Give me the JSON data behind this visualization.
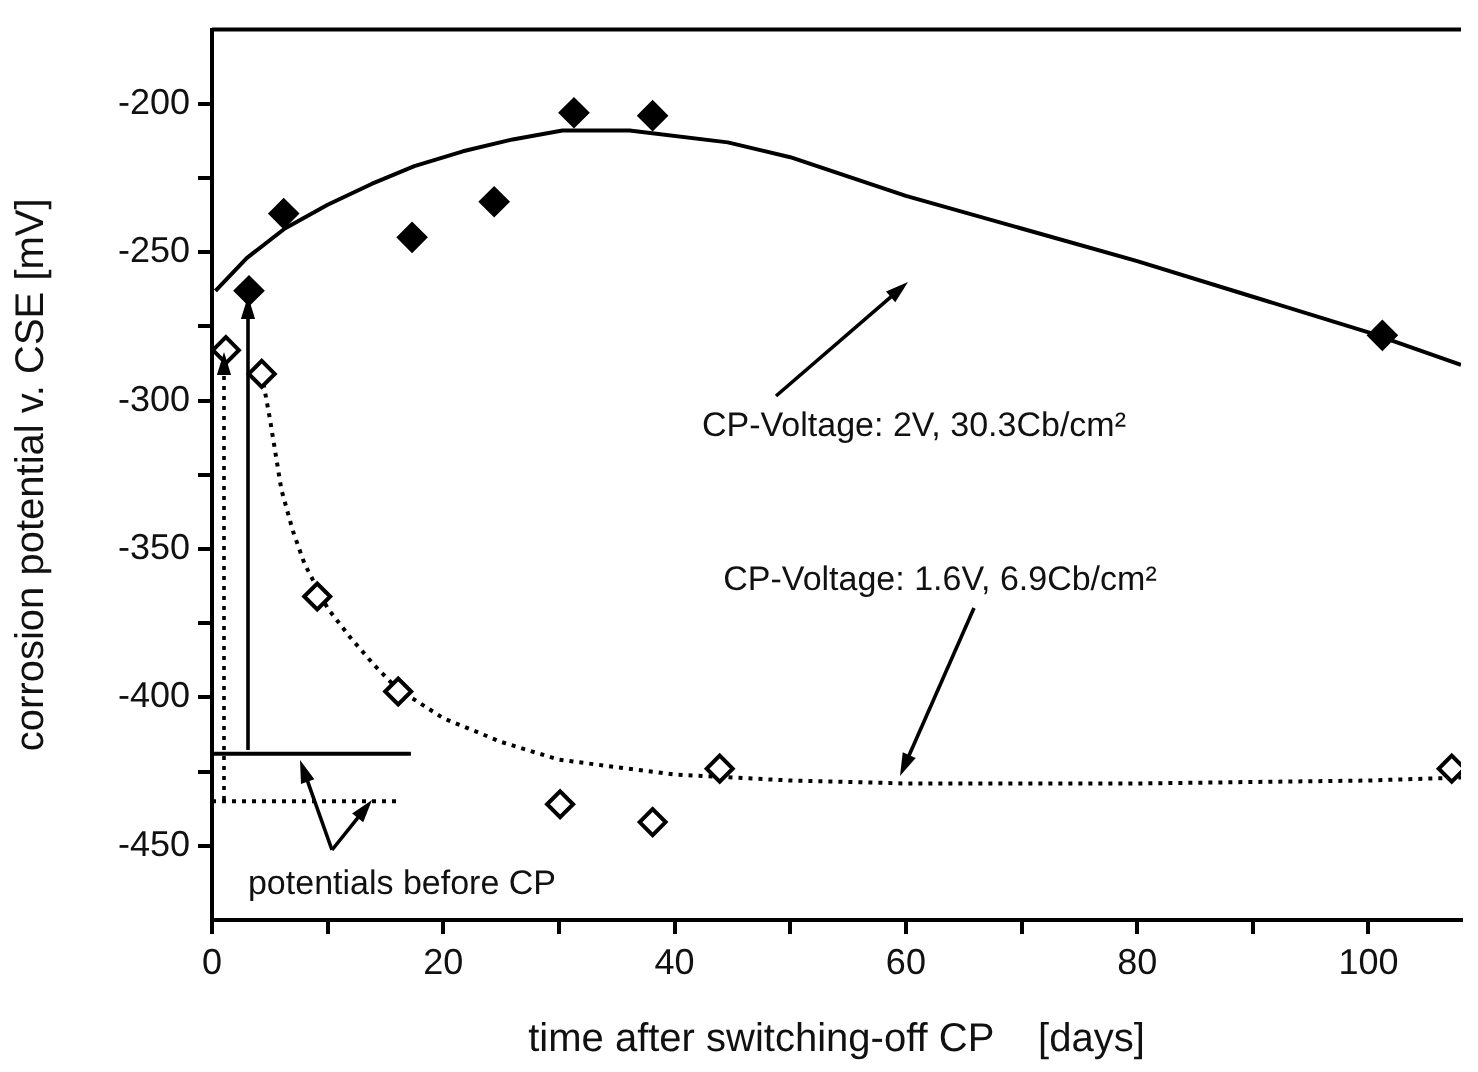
{
  "chart_data": {
    "type": "scatter",
    "xlabel": "time after switching-off CP    [days]",
    "ylabel": "corrosion potential v. CSE [mV]",
    "xlim": [
      0,
      108
    ],
    "ylim": [
      -475,
      -175
    ],
    "xticks": [
      0,
      {
        "value": 10,
        "label": null
      },
      20,
      {
        "value": 30,
        "label": null
      },
      40,
      {
        "value": 50,
        "label": null
      },
      60,
      {
        "value": 70,
        "label": null
      },
      80,
      {
        "value": 90,
        "label": null
      },
      100
    ],
    "yticks": [
      -450,
      {
        "value": -425,
        "label": null
      },
      -400,
      {
        "value": -375,
        "label": null
      },
      -350,
      {
        "value": -325,
        "label": null
      },
      -300,
      {
        "value": -275,
        "label": null
      },
      -250,
      {
        "value": -225,
        "label": null
      },
      -200
    ],
    "grid": false,
    "legend": false,
    "series": [
      {
        "marker": "diamond",
        "color": "#000000",
        "x": [
          3.2,
          6.2,
          17.3,
          24.4,
          31.3,
          38.1,
          101.2
        ],
        "values": [
          -263,
          -237,
          -245,
          -233,
          -203,
          -204,
          -278
        ]
      },
      {
        "marker": "diamond",
        "color": "#000000",
        "x": [
          1.2,
          4.3,
          9.1,
          16.1,
          30.1,
          38.1,
          43.9,
          107.2
        ],
        "values": [
          -283,
          -291,
          -366,
          -398,
          -436,
          -442,
          -424,
          -424
        ]
      },
      {
        "type": "line",
        "marker": "none",
        "line_style": "solid",
        "color": "#000000",
        "x": [
          0.3,
          3,
          6.3,
          10,
          13.8,
          17.5,
          21.7,
          26,
          30.3,
          36.1,
          44.6,
          50,
          60,
          70,
          80,
          90,
          100,
          108
        ],
        "values": [
          -263,
          -252,
          -242,
          -234,
          -227,
          -221,
          -216,
          -212,
          -209,
          -209,
          -213,
          -218,
          -231,
          -242,
          -253,
          -265,
          -277,
          -288
        ]
      },
      {
        "type": "line",
        "marker": "none",
        "line_style": "dotted",
        "color": "#000000",
        "x": [
          4.3,
          5,
          6,
          7,
          8,
          10,
          12,
          14,
          16,
          20,
          25,
          30,
          40,
          50,
          60,
          80,
          100,
          108
        ],
        "values": [
          -291,
          -306,
          -330,
          -344,
          -355,
          -370,
          -380,
          -389,
          -397,
          -407,
          -415,
          -421,
          -426,
          -428,
          -429,
          -429,
          -428,
          -427
        ]
      },
      {
        "type": "line",
        "marker": "none",
        "line_style": "solid",
        "color": "#000000",
        "x": [
          0,
          17.2
        ],
        "values": [
          -419,
          -419
        ]
      },
      {
        "type": "line",
        "marker": "none",
        "line_style": "dotted",
        "color": "#000000",
        "x": [
          0,
          16
        ],
        "values": [
          -435,
          -435
        ]
      }
    ],
    "annotations": [
      "CP-Voltage: 2V, 30.3Cb/cm²",
      "CP-Voltage: 1.6V, 6.9Cb/cm²",
      "potentials before CP"
    ]
  }
}
